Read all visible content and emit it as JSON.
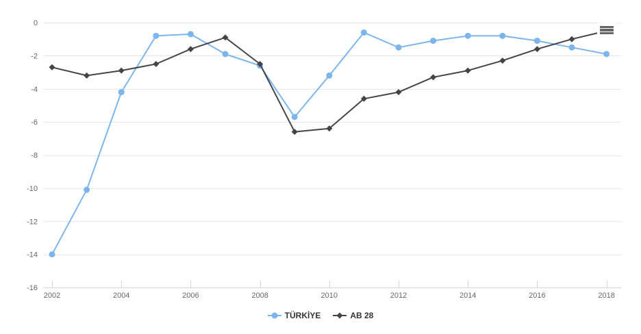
{
  "chart_data": {
    "type": "line",
    "x": [
      2002,
      2003,
      2004,
      2005,
      2006,
      2007,
      2008,
      2009,
      2010,
      2011,
      2012,
      2013,
      2014,
      2015,
      2016,
      2017,
      2018
    ],
    "series": [
      {
        "name": "TÜRKİYE",
        "color": "#7cb5ec",
        "marker": "circle",
        "values": [
          -14.0,
          -10.1,
          -4.2,
          -0.8,
          -0.7,
          -1.9,
          -2.6,
          -5.7,
          -3.2,
          -0.6,
          -1.5,
          -1.1,
          -0.8,
          -0.8,
          -1.1,
          -1.5,
          -1.9
        ]
      },
      {
        "name": "AB 28",
        "color": "#434348",
        "marker": "diamond",
        "values": [
          -2.7,
          -3.2,
          -2.9,
          -2.5,
          -1.6,
          -0.9,
          -2.5,
          -6.6,
          -6.4,
          -4.6,
          -4.2,
          -3.3,
          -2.9,
          -2.3,
          -1.6,
          -1.0,
          -0.5
        ]
      }
    ],
    "title": "",
    "xlabel": "",
    "ylabel": "",
    "ylim": [
      -16,
      0
    ],
    "y_ticks": [
      0,
      -2,
      -4,
      -6,
      -8,
      -10,
      -12,
      -14,
      -16
    ],
    "x_ticks": [
      2002,
      2004,
      2006,
      2008,
      2010,
      2012,
      2014,
      2016,
      2018
    ],
    "grid": "horizontal-only",
    "legend_position": "bottom-center"
  },
  "theme": {
    "background_color": "#ffffff",
    "grid_color": "#e6e6e6",
    "axis_line_color": "#ccd6eb",
    "axis_label_color": "#666666",
    "legend_text_color": "#333333",
    "menu_icon_color": "#666666"
  },
  "icons": {
    "context_menu": "hamburger-menu"
  }
}
